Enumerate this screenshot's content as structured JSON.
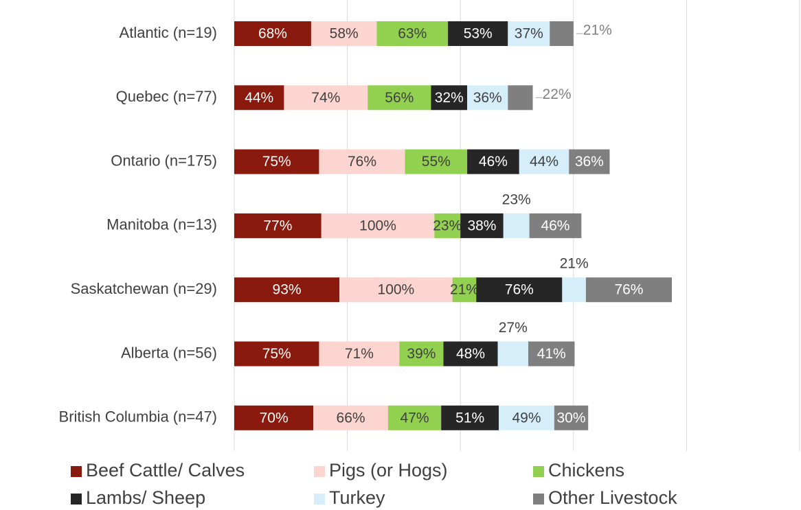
{
  "chart_data": {
    "type": "stacked-barh",
    "categories": [
      "Atlantic (n=19)",
      "Quebec (n=77)",
      "Ontario (n=175)",
      "Manitoba (n=13)",
      "Saskatchewan (n=29)",
      "Alberta (n=56)",
      "British Columbia (n=47)"
    ],
    "series": [
      {
        "name": "Beef Cattle/ Calves",
        "color": "#8b1a0e",
        "values": [
          68,
          44,
          75,
          77,
          93,
          75,
          70
        ]
      },
      {
        "name": "Pigs (or Hogs)",
        "color": "#fcd5d0",
        "values": [
          58,
          74,
          76,
          100,
          100,
          71,
          66
        ]
      },
      {
        "name": "Chickens",
        "color": "#92d050",
        "values": [
          63,
          56,
          55,
          23,
          21,
          39,
          47
        ]
      },
      {
        "name": "Lambs/ Sheep",
        "color": "#262626",
        "values": [
          53,
          32,
          46,
          38,
          76,
          48,
          51
        ]
      },
      {
        "name": "Turkey",
        "color": "#d6eefa",
        "values": [
          37,
          36,
          44,
          23,
          21,
          27,
          49
        ]
      },
      {
        "name": "Other Livestock",
        "color": "#7f7f7f",
        "values": [
          21,
          22,
          36,
          46,
          76,
          41,
          30
        ]
      }
    ],
    "value_labels": [
      [
        "68%",
        "44%",
        "75%",
        "77%",
        "93%",
        "75%",
        "70%"
      ],
      [
        "58%",
        "74%",
        "76%",
        "100%",
        "100%",
        "71%",
        "66%"
      ],
      [
        "63%",
        "56%",
        "55%",
        "23%",
        "21%",
        "39%",
        "47%"
      ],
      [
        "53%",
        "32%",
        "46%",
        "38%",
        "76%",
        "48%",
        "51%"
      ],
      [
        "37%",
        "36%",
        "44%",
        "23%",
        "21%",
        "27%",
        "49%"
      ],
      [
        "21%",
        "22%",
        "36%",
        "46%",
        "76%",
        "41%",
        "30%"
      ]
    ],
    "xlim": [
      0,
      500
    ],
    "xticks": [
      0,
      100,
      200,
      300,
      400,
      500
    ],
    "grid": true
  }
}
